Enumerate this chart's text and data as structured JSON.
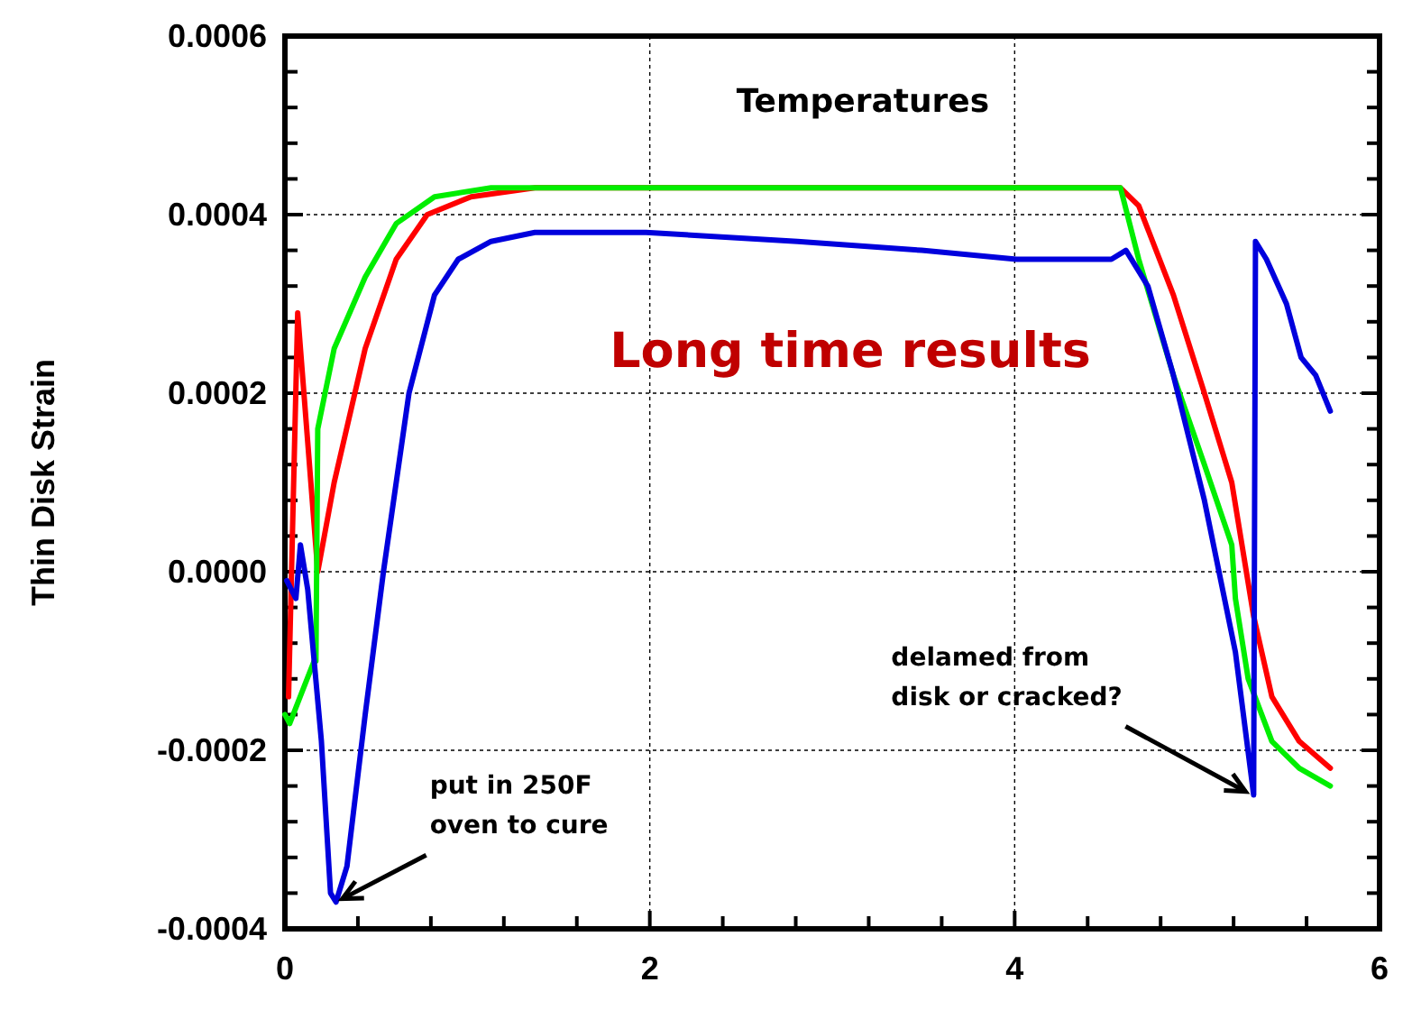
{
  "chart_data": {
    "type": "line",
    "title": "Temperatures",
    "ylabel": "Thin Disk Strain",
    "xlim": [
      0,
      6
    ],
    "ylim": [
      -0.0004,
      0.0006
    ],
    "xticks": [
      0,
      {
        "value": 0.4,
        "label": null
      },
      {
        "value": 0.8,
        "label": null
      },
      {
        "value": 1.2,
        "label": null
      },
      {
        "value": 1.6,
        "label": null
      },
      2,
      {
        "value": 2.4,
        "label": null
      },
      {
        "value": 2.8,
        "label": null
      },
      {
        "value": 3.2,
        "label": null
      },
      {
        "value": 3.6,
        "label": null
      },
      4,
      {
        "value": 4.4,
        "label": null
      },
      {
        "value": 4.8,
        "label": null
      },
      {
        "value": 5.2,
        "label": null
      },
      {
        "value": 5.6,
        "label": null
      },
      6
    ],
    "yticks": [
      -0.0004,
      {
        "value": -0.00036,
        "label": null
      },
      {
        "value": -0.00032,
        "label": null
      },
      {
        "value": -0.00028,
        "label": null
      },
      {
        "value": -0.00024,
        "label": null
      },
      -0.0002,
      {
        "value": -0.00016,
        "label": null
      },
      {
        "value": -0.00012,
        "label": null
      },
      {
        "value": -8e-05,
        "label": null
      },
      {
        "value": -4e-05,
        "label": null
      },
      {
        "value": 0,
        "label": "0.0000"
      },
      {
        "value": 4e-05,
        "label": null
      },
      {
        "value": 8e-05,
        "label": null
      },
      {
        "value": 0.00012,
        "label": null
      },
      {
        "value": 0.00016,
        "label": null
      },
      0.0002,
      {
        "value": 0.00024,
        "label": null
      },
      {
        "value": 0.00028,
        "label": null
      },
      {
        "value": 0.00032,
        "label": null
      },
      {
        "value": 0.00036,
        "label": null
      },
      0.0004,
      {
        "value": 0.00044,
        "label": null
      },
      {
        "value": 0.00048,
        "label": null
      },
      {
        "value": 0.00052,
        "label": null
      },
      {
        "value": 0.00056,
        "label": null
      },
      0.0006
    ],
    "grid": true,
    "marker": "none",
    "line_style": "solid",
    "series": [
      {
        "color": "#ff0000",
        "x": [
          0.02,
          0.07,
          0.18,
          0.27,
          0.44,
          0.61,
          0.78,
          1.02,
          1.37,
          4.58,
          4.68,
          4.87,
          5.04,
          5.19,
          5.31,
          5.41,
          5.56,
          5.73
        ],
        "values": [
          -0.00014,
          0.00029,
          0.0,
          0.0001,
          0.00025,
          0.00035,
          0.0004,
          0.00042,
          0.00043,
          0.00043,
          0.00041,
          0.00031,
          0.0002,
          0.0001,
          -5e-05,
          -0.00014,
          -0.00019,
          -0.00022
        ]
      },
      {
        "color": "#00ee00",
        "x": [
          0.0,
          0.026,
          0.16,
          0.17,
          0.18,
          0.27,
          0.44,
          0.61,
          0.82,
          1.13,
          4.58,
          4.68,
          4.87,
          5.04,
          5.19,
          5.21,
          5.28,
          5.41,
          5.56,
          5.73
        ],
        "values": [
          -0.00016,
          -0.00017,
          -0.0001,
          -0.0001,
          0.00016,
          0.00025,
          0.00033,
          0.00039,
          0.00042,
          0.00043,
          0.00043,
          0.00035,
          0.00022,
          0.00012,
          3e-05,
          -3e-05,
          -0.00012,
          -0.00019,
          -0.00022,
          -0.00024
        ]
      },
      {
        "color": "#0000dd",
        "x": [
          0.01,
          0.06,
          0.085,
          0.125,
          0.2,
          0.25,
          0.28,
          0.34,
          0.44,
          0.54,
          0.68,
          0.82,
          0.95,
          1.13,
          1.37,
          1.98,
          2.81,
          3.49,
          4.01,
          4.53,
          4.61,
          4.73,
          4.87,
          5.04,
          5.21,
          5.31,
          5.32,
          5.38,
          5.49,
          5.57,
          5.65,
          5.73
        ],
        "values": [
          -1e-05,
          -3e-05,
          3e-05,
          -2e-05,
          -0.00019,
          -0.00036,
          -0.00037,
          -0.00033,
          -0.00016,
          0.0,
          0.0002,
          0.00031,
          0.00035,
          0.00037,
          0.00038,
          0.00038,
          0.00037,
          0.00036,
          0.00035,
          0.00035,
          0.00036,
          0.00032,
          0.00022,
          8e-05,
          -9e-05,
          -0.00025,
          0.00037,
          0.00035,
          0.0003,
          0.00024,
          0.00022,
          0.00018
        ]
      }
    ],
    "annotations": [
      "Long time results",
      {
        "text": "put in 250F\noven to cure",
        "x": 0.28,
        "y": -0.00037
      },
      {
        "text": "delamed from\ndisk or cracked?",
        "x": 5.3,
        "y": -0.00025
      }
    ]
  }
}
